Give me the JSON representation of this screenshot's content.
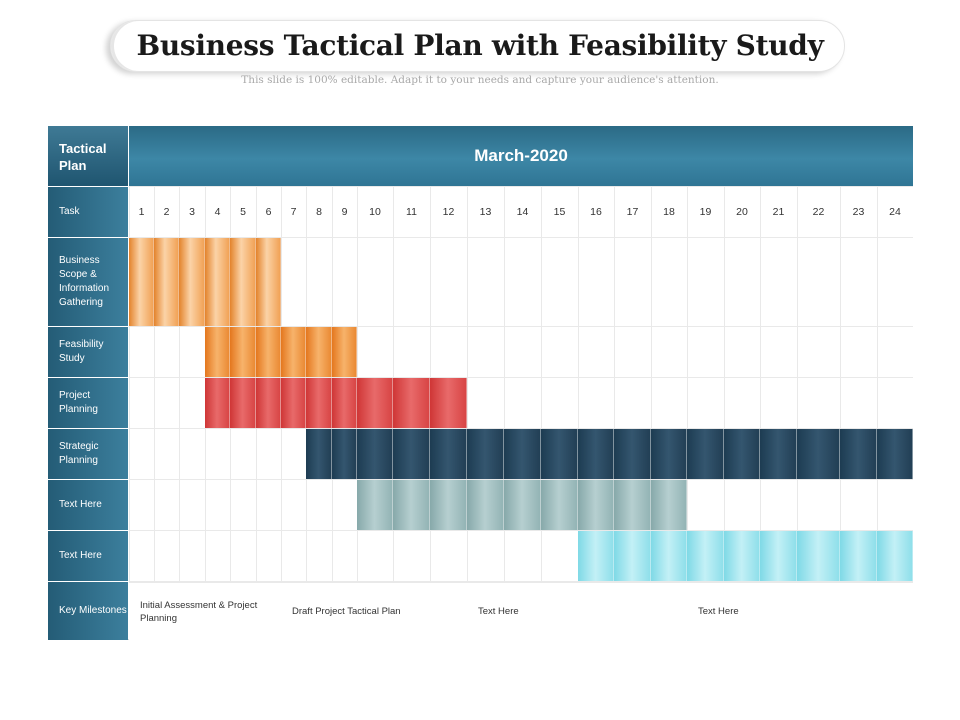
{
  "slide": {
    "title": "Business Tactical Plan with Feasibility Study",
    "subtitle": "This slide is 100% editable. Adapt it to your needs and capture your audience's attention."
  },
  "gantt": {
    "header_left": "Tactical Plan",
    "month": "March-2020",
    "task_label": "Task",
    "days": [
      "1",
      "2",
      "3",
      "4",
      "5",
      "6",
      "7",
      "8",
      "9",
      "10",
      "11",
      "12",
      "13",
      "14",
      "15",
      "16",
      "17",
      "18",
      "19",
      "20",
      "21",
      "22",
      "23",
      "24"
    ],
    "rows": [
      {
        "label": "Business Scope & Information Gathering",
        "start_day": 1,
        "end_day": 6,
        "color": "#f1a256",
        "style": "c-orange-light"
      },
      {
        "label": "Feasibility Study",
        "start_day": 4,
        "end_day": 9,
        "color": "#ea8a34",
        "style": "c-orange"
      },
      {
        "label": "Project Planning",
        "start_day": 4,
        "end_day": 12,
        "color": "#d84545",
        "style": "c-red"
      },
      {
        "label": "Strategic Planning",
        "start_day": 8,
        "end_day": 24,
        "color": "#223f55",
        "style": "c-navy"
      },
      {
        "label": "Text Here",
        "start_day": 10,
        "end_day": 18,
        "color": "#93b4b5",
        "style": "c-gray"
      },
      {
        "label": "Text Here",
        "start_day": 16,
        "end_day": 24,
        "color": "#8fdfea",
        "style": "c-cyan"
      }
    ],
    "milestones_label": "Key Milestones",
    "milestones": [
      {
        "text": "Initial Assessment & Project Planning",
        "start_day": 1,
        "end_day": 6
      },
      {
        "text": "Draft Project Tactical Plan",
        "start_day": 7,
        "end_day": 13
      },
      {
        "text": "Text Here",
        "start_day": 13,
        "end_day": 18
      },
      {
        "text": "Text Here",
        "start_day": 19,
        "end_day": 24
      }
    ]
  }
}
